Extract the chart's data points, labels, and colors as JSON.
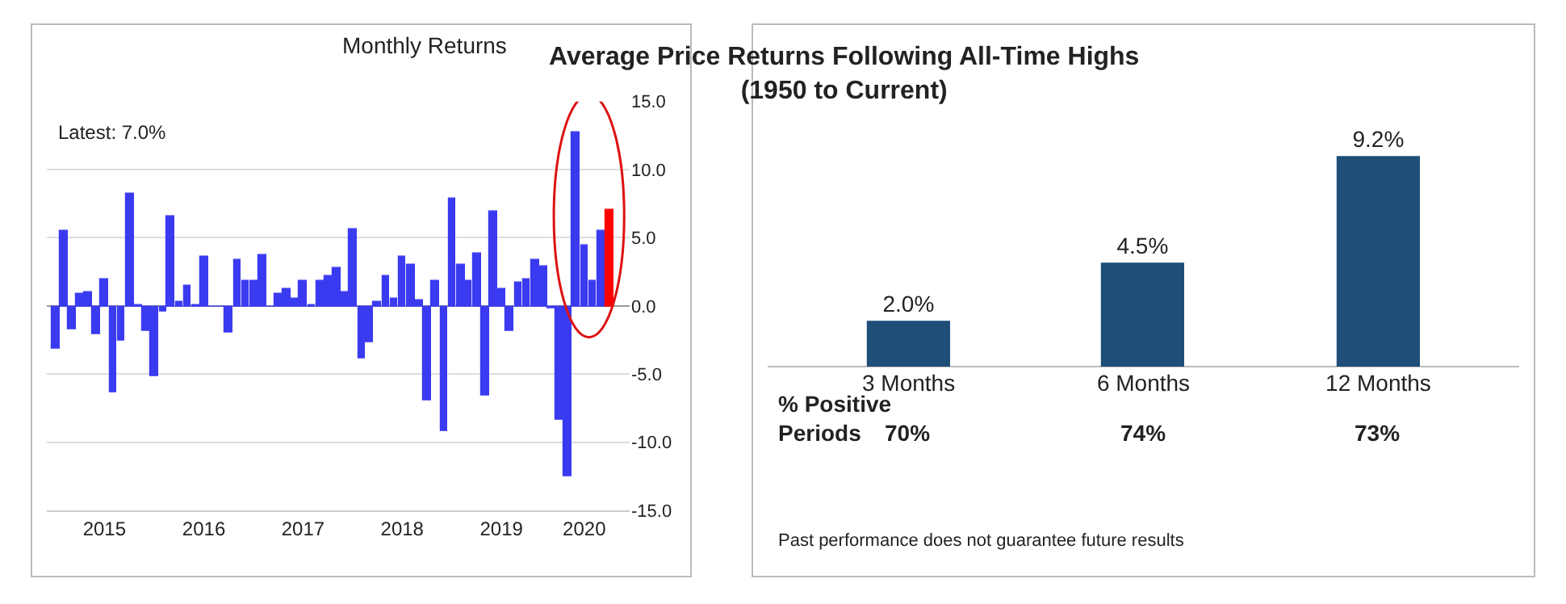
{
  "chart_data": [
    {
      "type": "bar",
      "title": "Monthly Returns",
      "annotations": [
        "Latest: 7.0%"
      ],
      "x": [
        "2015-01",
        "2015-02",
        "2015-03",
        "2015-04",
        "2015-05",
        "2015-06",
        "2015-07",
        "2015-08",
        "2015-09",
        "2015-10",
        "2015-11",
        "2015-12",
        "2016-01",
        "2016-02",
        "2016-03",
        "2016-04",
        "2016-05",
        "2016-06",
        "2016-07",
        "2016-08",
        "2016-09",
        "2016-10",
        "2016-11",
        "2016-12",
        "2017-01",
        "2017-02",
        "2017-03",
        "2017-04",
        "2017-05",
        "2017-06",
        "2017-07",
        "2017-08",
        "2017-09",
        "2017-10",
        "2017-11",
        "2017-12",
        "2018-01",
        "2018-02",
        "2018-03",
        "2018-04",
        "2018-05",
        "2018-06",
        "2018-07",
        "2018-08",
        "2018-09",
        "2018-10",
        "2018-11",
        "2018-12",
        "2019-01",
        "2019-02",
        "2019-03",
        "2019-04",
        "2019-05",
        "2019-06",
        "2019-07",
        "2019-08",
        "2019-09",
        "2019-10",
        "2019-11",
        "2019-12",
        "2020-01",
        "2020-02",
        "2020-03",
        "2020-04",
        "2020-05",
        "2020-06",
        "2020-07",
        "2020-08"
      ],
      "values": [
        -3.1,
        5.5,
        -1.7,
        0.9,
        1.0,
        -2.1,
        2.0,
        -6.3,
        -2.6,
        8.3,
        0.1,
        -1.8,
        -5.1,
        -0.4,
        6.6,
        0.3,
        1.5,
        0.1,
        3.6,
        -0.1,
        -0.1,
        -1.9,
        3.4,
        1.8,
        1.8,
        3.7,
        -0.1,
        0.9,
        1.2,
        0.5,
        1.9,
        0.1,
        1.9,
        2.2,
        2.8,
        1.0,
        5.6,
        -3.9,
        -2.7,
        0.3,
        2.2,
        0.5,
        3.6,
        3.0,
        0.4,
        -6.9,
        1.8,
        -9.2,
        7.9,
        3.0,
        1.8,
        3.9,
        -6.6,
        6.9,
        1.3,
        -1.8,
        1.7,
        2.0,
        3.4,
        2.9,
        -0.2,
        -8.4,
        -12.5,
        12.7,
        4.5,
        1.8,
        5.5,
        7.0
      ],
      "colors": [
        "#3a3af0",
        "#3a3af0",
        "#3a3af0",
        "#3a3af0",
        "#3a3af0",
        "#3a3af0",
        "#3a3af0",
        "#3a3af0",
        "#3a3af0",
        "#3a3af0",
        "#3a3af0",
        "#3a3af0",
        "#3a3af0",
        "#3a3af0",
        "#3a3af0",
        "#3a3af0",
        "#3a3af0",
        "#3a3af0",
        "#3a3af0",
        "#3a3af0",
        "#3a3af0",
        "#3a3af0",
        "#3a3af0",
        "#3a3af0",
        "#3a3af0",
        "#3a3af0",
        "#3a3af0",
        "#3a3af0",
        "#3a3af0",
        "#3a3af0",
        "#3a3af0",
        "#3a3af0",
        "#3a3af0",
        "#3a3af0",
        "#3a3af0",
        "#3a3af0",
        "#3a3af0",
        "#3a3af0",
        "#3a3af0",
        "#3a3af0",
        "#3a3af0",
        "#3a3af0",
        "#3a3af0",
        "#3a3af0",
        "#3a3af0",
        "#3a3af0",
        "#3a3af0",
        "#3a3af0",
        "#3a3af0",
        "#3a3af0",
        "#3a3af0",
        "#3a3af0",
        "#3a3af0",
        "#3a3af0",
        "#3a3af0",
        "#3a3af0",
        "#3a3af0",
        "#3a3af0",
        "#3a3af0",
        "#3a3af0",
        "#3a3af0",
        "#3a3af0",
        "#3a3af0",
        "#3a3af0",
        "#3a3af0",
        "#3a3af0",
        "#3a3af0",
        "#ff0000"
      ],
      "xlim": [
        "2014-12-01",
        "2020-10-15"
      ],
      "xticks": [
        {
          "value": "2015-07-01",
          "label": "2015"
        },
        {
          "value": "2016-07-01",
          "label": "2016"
        },
        {
          "value": "2017-07-01",
          "label": "2017"
        },
        {
          "value": "2018-07-01",
          "label": "2018"
        },
        {
          "value": "2019-07-01",
          "label": "2019"
        },
        {
          "value": "2020-05-01",
          "label": "2020"
        }
      ],
      "ylim": [
        -15,
        15
      ],
      "yticks": [
        {
          "value": 15,
          "label": "15.0"
        },
        {
          "value": 10,
          "label": "10.0"
        },
        {
          "value": 5,
          "label": "5.0"
        },
        {
          "value": 0,
          "label": "0.0"
        },
        {
          "value": -5,
          "label": "-5.0"
        },
        {
          "value": -10,
          "label": "-10.0"
        },
        {
          "value": -15,
          "label": "-15.0"
        }
      ],
      "grid": "y"
    },
    {
      "type": "bar",
      "title": "Average Price Returns Following All-Time Highs\n(1950 to Current)",
      "categories": [
        "3 Months",
        "6 Months",
        "12 Months"
      ],
      "values": [
        2.0,
        4.5,
        9.2
      ],
      "color": "#1f4e79",
      "value_labels": [
        "2.0%",
        "4.5%",
        "9.2%"
      ],
      "annotations": [
        "% Positive\nPeriods",
        "70%",
        "74%",
        "73%",
        "Past performance does not guarantee future results"
      ],
      "tick_labels": "x",
      "grid": false
    }
  ]
}
